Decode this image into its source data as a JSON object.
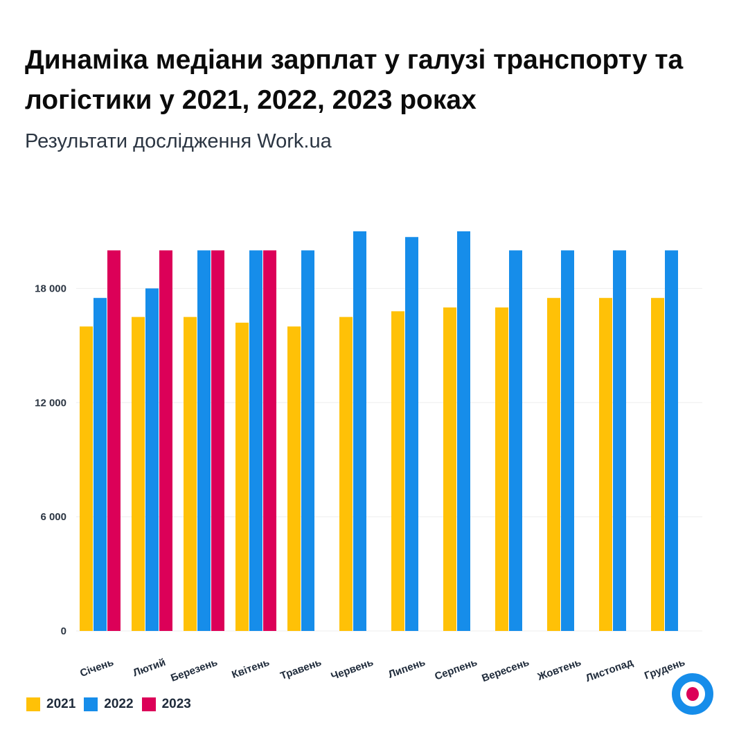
{
  "header": {
    "title": "Динаміка медіани зарплат у галузі транспорту та логістики у 2021, 2022, 2023 роках",
    "subtitle": "Результати дослідження Work.ua"
  },
  "colors": {
    "2021": "#FFC107",
    "2022": "#168DEA",
    "2023": "#DC0058",
    "grid": "#EDEDED",
    "logo_ring": "#168DEA",
    "logo_dot": "#DC0058"
  },
  "legend": [
    {
      "label": "2021",
      "color": "#FFC107"
    },
    {
      "label": "2022",
      "color": "#168DEA"
    },
    {
      "label": "2023",
      "color": "#DC0058"
    }
  ],
  "logo": {
    "icon": "work-ua-logo-icon"
  },
  "chart_data": {
    "type": "bar",
    "categories": [
      "Січень",
      "Лютий",
      "Березень",
      "Квітень",
      "Травень",
      "Червень",
      "Липень",
      "Серпень",
      "Вересень",
      "Жовтень",
      "Листопад",
      "Грудень"
    ],
    "series": [
      {
        "name": "2021",
        "color": "#FFC107",
        "values": [
          16000,
          16500,
          16500,
          16200,
          16000,
          16500,
          16800,
          17000,
          17000,
          17500,
          17500,
          17500
        ]
      },
      {
        "name": "2022",
        "color": "#168DEA",
        "values": [
          17500,
          18000,
          20000,
          20000,
          20000,
          21000,
          20700,
          21000,
          20000,
          20000,
          20000,
          20000
        ]
      },
      {
        "name": "2023",
        "color": "#DC0058",
        "values": [
          20000,
          20000,
          20000,
          20000,
          null,
          null,
          null,
          null,
          null,
          null,
          null,
          null
        ]
      }
    ],
    "yticks": [
      0,
      6000,
      12000,
      18000
    ],
    "ytick_labels": [
      "0",
      "6 000",
      "12 000",
      "18 000"
    ],
    "ylim": [
      0,
      21000
    ],
    "grid": true,
    "legend_position": "bottom-left"
  }
}
